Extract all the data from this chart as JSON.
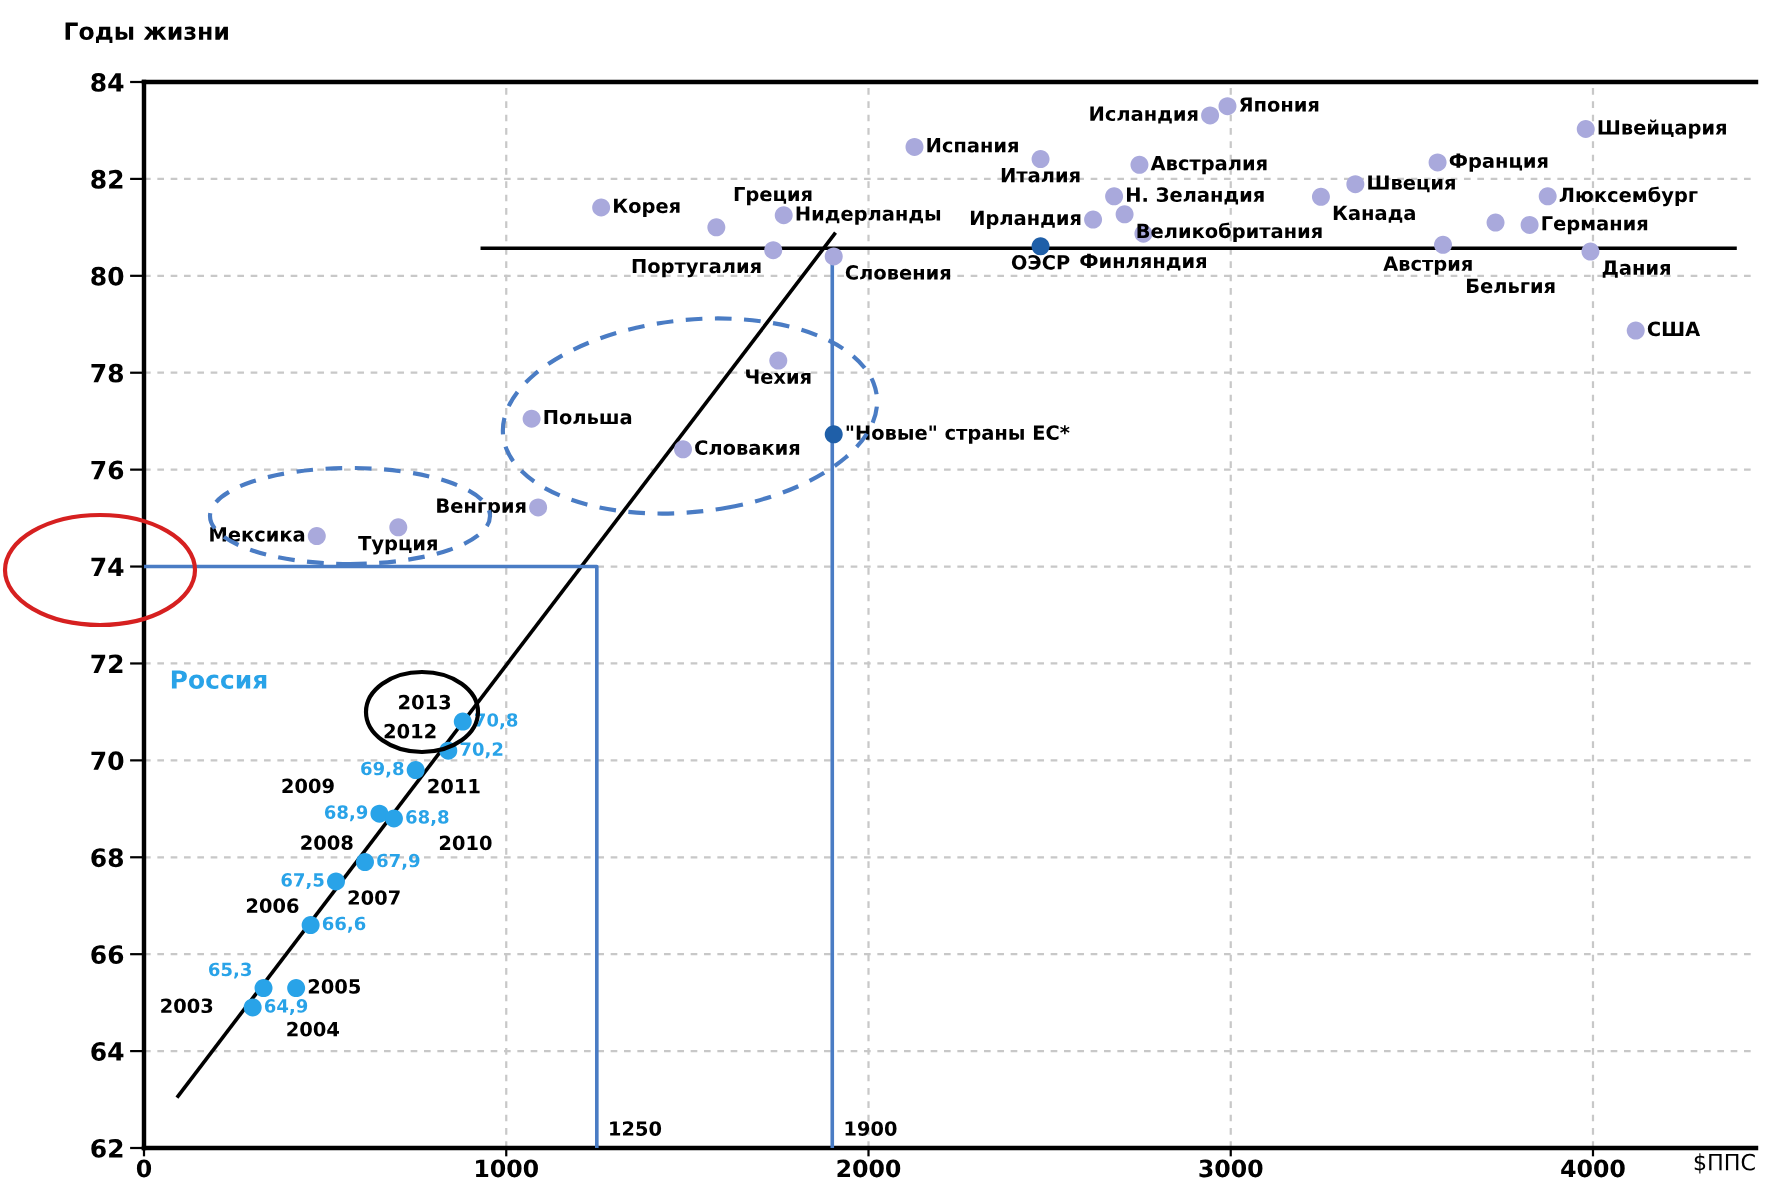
{
  "chart_data": {
    "type": "scatter",
    "ylabel": "Годы жизни",
    "xlabel": "$ППС",
    "xlim": [
      0,
      4450
    ],
    "ylim": [
      62,
      84
    ],
    "xticks": [
      0,
      1000,
      2000,
      3000,
      4000
    ],
    "yticks": [
      62,
      64,
      66,
      68,
      70,
      72,
      74,
      76,
      78,
      80,
      82,
      84
    ],
    "grid": true,
    "series": [
      {
        "color": "#a9a9dc",
        "x": [
          1262,
          1580,
          1766,
          1737,
          1904,
          1751,
          1488,
          1070,
          1088,
          477,
          702,
          2127,
          2475,
          2943,
          2991,
          2748,
          2678,
          2620,
          2707,
          2759,
          3344,
          3249,
          3571,
          3980,
          3875,
          3731,
          3825,
          3586,
          3993,
          4118
        ],
        "values": [
          81.41,
          81.0,
          81.25,
          80.53,
          80.4,
          78.25,
          76.42,
          77.05,
          75.22,
          74.63,
          74.81,
          82.66,
          82.41,
          83.31,
          83.5,
          82.29,
          81.64,
          81.16,
          81.27,
          80.87,
          81.89,
          81.63,
          82.34,
          83.03,
          81.64,
          81.1,
          81.05,
          80.64,
          80.5,
          78.87
        ]
      },
      {
        "color": "#1f5fa8",
        "x": [
          2475,
          1904
        ],
        "values": [
          80.61,
          76.73
        ]
      },
      {
        "name": "Россия",
        "color": "#29a3e8",
        "x": [
          300,
          330,
          420,
          460,
          530,
          610,
          650,
          690,
          750,
          840,
          880
        ],
        "values": [
          64.9,
          65.3,
          65.3,
          66.6,
          67.5,
          67.9,
          68.9,
          68.8,
          69.8,
          70.2,
          70.8
        ],
        "value_labels": [
          "64,9",
          "65,3",
          null,
          "66,6",
          "67,5",
          "67,9",
          "68,9",
          "68,8",
          "69,8",
          "70,2",
          "70,8"
        ]
      },
      {
        "type": "line",
        "color": "#000000",
        "x": [
          94,
          1906
        ],
        "values": [
          63.07,
          80.86
        ]
      },
      {
        "type": "line",
        "color": "#000000",
        "x": [
          934,
          4392
        ],
        "values": [
          80.57,
          80.57
        ]
      },
      {
        "type": "line",
        "color": "#4a7cc4",
        "x": [
          0,
          1250,
          1250
        ],
        "values": [
          74,
          74,
          62
        ]
      },
      {
        "type": "line",
        "color": "#4a7cc4",
        "x": [
          1900,
          1900
        ],
        "values": [
          80.4,
          62
        ]
      }
    ],
    "annotations": [
      {
        "text": "1250",
        "x": 1250,
        "y": 62
      },
      {
        "text": "1900",
        "x": 1900,
        "y": 62
      },
      {
        "text": "2013",
        "x": 880,
        "y": 70.8
      },
      {
        "text": "2012",
        "x": 840,
        "y": 70.2
      },
      {
        "text": "2011",
        "x": 750,
        "y": 69.8
      },
      {
        "text": "2010",
        "x": 690,
        "y": 68.8
      },
      {
        "text": "2009",
        "x": 650,
        "y": 68.9
      },
      {
        "text": "2008",
        "x": 610,
        "y": 67.9
      },
      {
        "text": "2007",
        "x": 530,
        "y": 67.5
      },
      {
        "text": "2006",
        "x": 460,
        "y": 66.6
      },
      {
        "text": "2005",
        "x": 420,
        "y": 65.3
      },
      {
        "text": "2004",
        "x": 330,
        "y": 65.3
      },
      {
        "text": "2003",
        "x": 300,
        "y": 64.9
      },
      {
        "text": "Корея",
        "x": 1262,
        "y": 81.41
      },
      {
        "text": "Греция",
        "x": 1580,
        "y": 81.0
      },
      {
        "text": "Нидерланды",
        "x": 1766,
        "y": 81.25
      },
      {
        "text": "Португалия",
        "x": 1737,
        "y": 80.53
      },
      {
        "text": "Словения",
        "x": 1904,
        "y": 80.4
      },
      {
        "text": "Чехия",
        "x": 1751,
        "y": 78.25
      },
      {
        "text": "Словакия",
        "x": 1488,
        "y": 76.42
      },
      {
        "text": "Польша",
        "x": 1070,
        "y": 77.05
      },
      {
        "text": "Венгрия",
        "x": 1088,
        "y": 75.22
      },
      {
        "text": "Мексика",
        "x": 477,
        "y": 74.63
      },
      {
        "text": "Турция",
        "x": 702,
        "y": 74.81
      },
      {
        "text": "Испания",
        "x": 2127,
        "y": 82.66
      },
      {
        "text": "Италия",
        "x": 2475,
        "y": 82.41
      },
      {
        "text": "Исландия",
        "x": 2943,
        "y": 83.31
      },
      {
        "text": "Япония",
        "x": 2991,
        "y": 83.5
      },
      {
        "text": "Австралия",
        "x": 2748,
        "y": 82.29
      },
      {
        "text": "Н. Зеландия",
        "x": 2678,
        "y": 81.64
      },
      {
        "text": "Ирландия",
        "x": 2620,
        "y": 81.16
      },
      {
        "text": "Великобритания",
        "x": 2707,
        "y": 81.27
      },
      {
        "text": "Финляндия",
        "x": 2759,
        "y": 80.87
      },
      {
        "text": "Швеция",
        "x": 3344,
        "y": 81.89
      },
      {
        "text": "Канада",
        "x": 3249,
        "y": 81.63
      },
      {
        "text": "Франция",
        "x": 3571,
        "y": 82.34
      },
      {
        "text": "Швейцария",
        "x": 3980,
        "y": 83.03
      },
      {
        "text": "Люксембург",
        "x": 3875,
        "y": 81.64
      },
      {
        "text": "Австрия",
        "x": 3731,
        "y": 81.1
      },
      {
        "text": "Германия",
        "x": 3825,
        "y": 81.05
      },
      {
        "text": "Бельгия",
        "x": 3586,
        "y": 80.64
      },
      {
        "text": "Дания",
        "x": 3993,
        "y": 80.5
      },
      {
        "text": "США",
        "x": 4118,
        "y": 78.87
      },
      {
        "text": "ОЭСР",
        "x": 2475,
        "y": 80.61
      },
      {
        "text": "\"Новые\" страны ЕС*",
        "x": 1904,
        "y": 76.73
      }
    ]
  }
}
